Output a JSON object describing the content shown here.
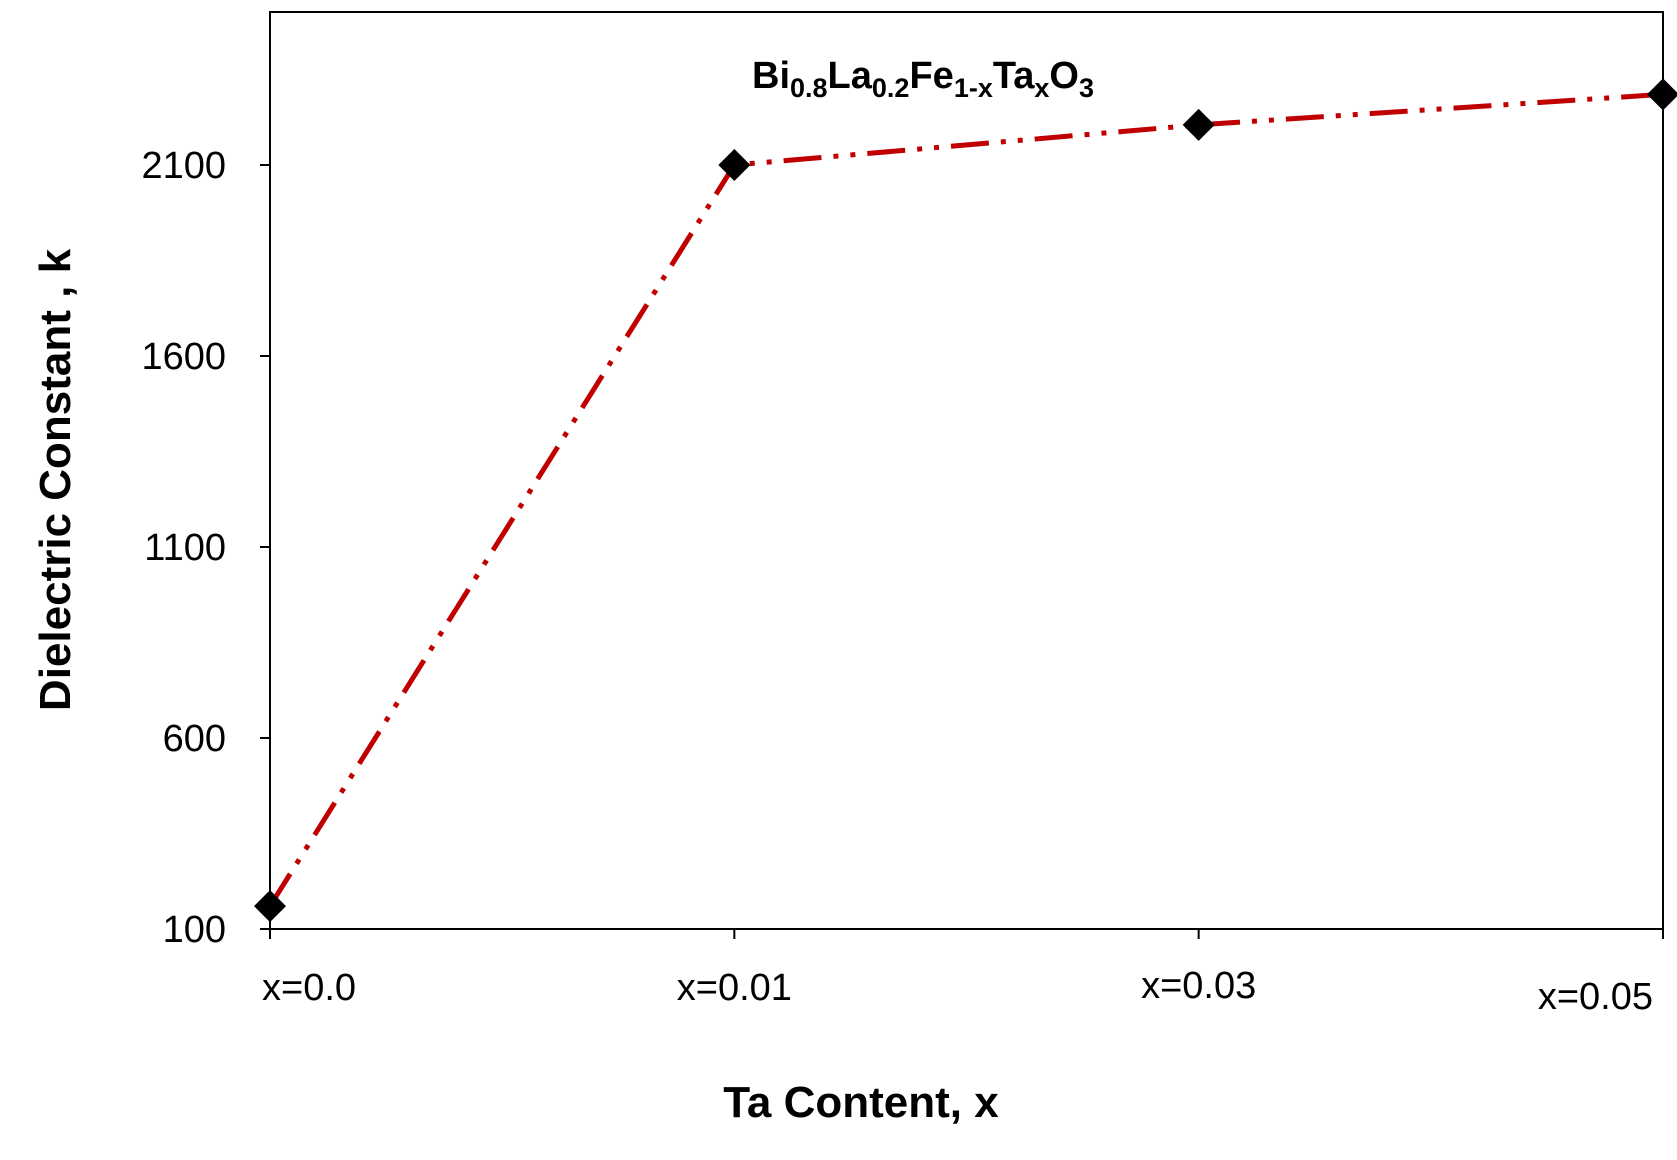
{
  "chart_data": {
    "type": "line",
    "categories": [
      "x=0.0",
      "x=0.01",
      "x=0.03",
      "x=0.05"
    ],
    "series": [
      {
        "values": [
          160,
          2100,
          2205,
          2285
        ],
        "color": "#c00000",
        "marker": "diamond",
        "marker_color": "#000000",
        "line_style": "dash-dot-dot"
      }
    ],
    "annotation": {
      "parts": [
        {
          "text": "Bi",
          "sub": false
        },
        {
          "text": "0.8",
          "sub": true
        },
        {
          "text": "La",
          "sub": false
        },
        {
          "text": "0.2",
          "sub": true
        },
        {
          "text": "Fe",
          "sub": false
        },
        {
          "text": "1-x",
          "sub": true
        },
        {
          "text": "Ta",
          "sub": false
        },
        {
          "text": "x",
          "sub": true
        },
        {
          "text": "O",
          "sub": false
        },
        {
          "text": "3",
          "sub": true
        }
      ]
    },
    "xlabel": "Ta Content, x",
    "ylabel": "Dielectric Constant , k",
    "yticks": [
      "100",
      "600",
      "1100",
      "1600",
      "2100"
    ],
    "ylim": [
      100,
      2500
    ],
    "grid": false,
    "legend": "none"
  }
}
